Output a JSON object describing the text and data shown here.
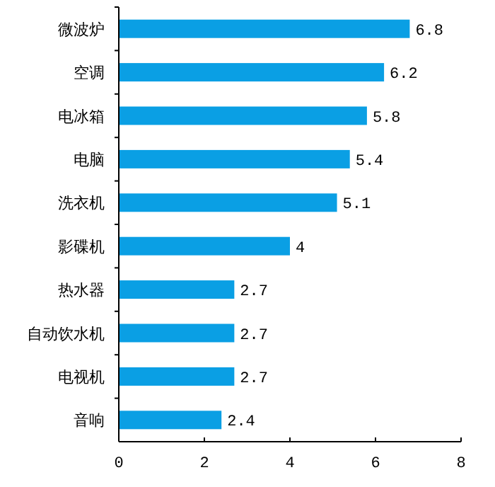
{
  "chart_data": {
    "type": "bar",
    "orientation": "horizontal",
    "categories": [
      "微波炉",
      "空调",
      "电冰箱",
      "电脑",
      "洗衣机",
      "影碟机",
      "热水器",
      "自动饮水机",
      "电视机",
      "音响"
    ],
    "values": [
      6.8,
      6.2,
      5.8,
      5.4,
      5.1,
      4,
      2.7,
      2.7,
      2.7,
      2.4
    ],
    "color": "#0a9fe4",
    "xlim": [
      0,
      8
    ],
    "xticks": [
      0,
      2,
      4,
      6,
      8
    ],
    "data_labels": true
  }
}
